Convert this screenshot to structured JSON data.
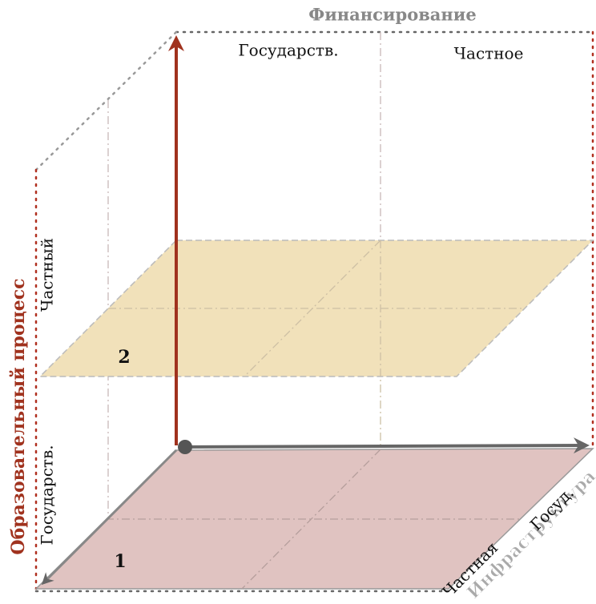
{
  "axes": {
    "funding": {
      "title": "Финансирование",
      "state": "Государств.",
      "private": "Частное"
    },
    "education": {
      "title": "Образовательный процесс",
      "private": "Частный",
      "state": "Государств."
    },
    "infrastructure": {
      "title": "Инфраструктура",
      "state": "Госуд.",
      "private": "Частная"
    }
  },
  "planes": [
    {
      "label": "1"
    },
    {
      "label": "2"
    }
  ]
}
